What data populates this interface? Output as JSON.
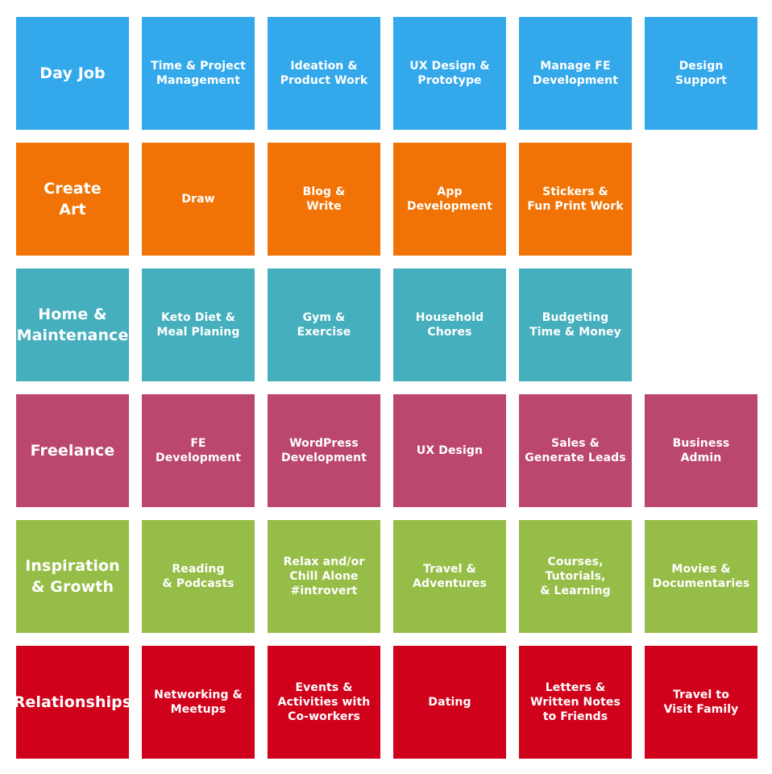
{
  "rows": [
    {
      "name": "day-job",
      "color": "#33a9ec",
      "header": "Day Job",
      "items": [
        "Time & Project\nManagement",
        "Ideation &\nProduct Work",
        "UX Design &\nPrototype",
        "Manage FE\nDevelopment",
        "Design\nSupport"
      ]
    },
    {
      "name": "create-art",
      "color": "#f17305",
      "header": "Create\nArt",
      "items": [
        "Draw",
        "Blog &\nWrite",
        "App\nDevelopment",
        "Stickers &\nFun Print Work"
      ]
    },
    {
      "name": "home-maintenance",
      "color": "#45afbd",
      "header": "Home &\nMaintenance",
      "items": [
        "Keto Diet &\nMeal Planing",
        "Gym &\nExercise",
        "Household\nChores",
        "Budgeting\nTime & Money"
      ]
    },
    {
      "name": "freelance",
      "color": "#bb466f",
      "header": "Freelance",
      "items": [
        "FE Development",
        "WordPress\nDevelopment",
        "UX Design",
        "Sales &\nGenerate Leads",
        "Business\nAdmin"
      ]
    },
    {
      "name": "inspiration-growth",
      "color": "#96bd47",
      "header": "Inspiration\n& Growth",
      "items": [
        "Reading\n& Podcasts",
        "Relax and/or\nChill Alone\n#introvert",
        "Travel &\nAdventures",
        "Courses,\nTutorials,\n& Learning",
        "Movies &\nDocumentaries"
      ]
    },
    {
      "name": "relationships",
      "color": "#d0021b",
      "header": "Relationships",
      "items": [
        "Networking &\nMeetups",
        "Events &\nActivities with\nCo-workers",
        "Dating",
        "Letters &\nWritten Notes\nto Friends",
        "Travel to\nVisit Family"
      ]
    }
  ]
}
